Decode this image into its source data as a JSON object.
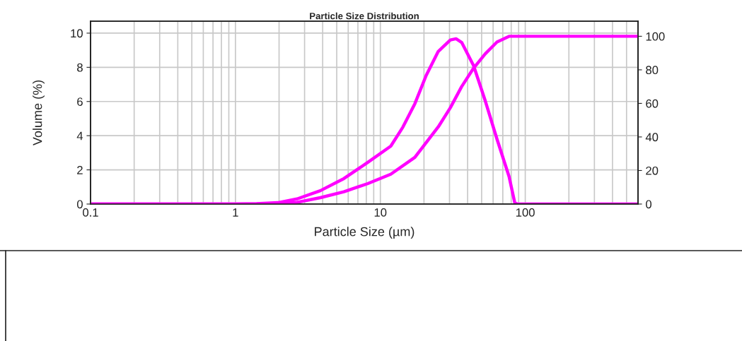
{
  "chart_data": {
    "type": "line",
    "title": "Particle Size Distribution",
    "xlabel": "Particle Size (µm)",
    "ylabel": "Volume (%)",
    "log": "x",
    "grid": true,
    "xlim": [
      0.1,
      600
    ],
    "xticks": [
      0.1,
      1,
      10,
      100
    ],
    "ylim": [
      0,
      10.7
    ],
    "yticks": [
      0,
      2,
      4,
      6,
      8,
      10
    ],
    "y2lim": [
      0,
      109
    ],
    "y2ticks": [
      0,
      20,
      40,
      60,
      80,
      100
    ],
    "series": [
      {
        "color": "#ff00ff",
        "x": [
          0.1,
          1,
          1.4,
          1.96,
          2.66,
          3.85,
          5.6,
          8.2,
          11.8,
          14.3,
          17.3,
          20.7,
          25.1,
          30.4,
          33.3,
          36.4,
          44,
          53,
          63.8,
          77.3,
          84.6,
          88,
          600
        ],
        "values": [
          0,
          0,
          0.02,
          0.08,
          0.3,
          0.78,
          1.49,
          2.44,
          3.39,
          4.5,
          5.87,
          7.52,
          8.93,
          9.6,
          9.67,
          9.46,
          8.1,
          6.03,
          3.8,
          1.61,
          0.08,
          0,
          0
        ]
      },
      {
        "color": "#ff00ff",
        "axis": "y2",
        "x": [
          0.1,
          1.5,
          2.66,
          3.85,
          5.6,
          8.2,
          11.8,
          17.3,
          25.1,
          30.4,
          36.4,
          44,
          53,
          63.8,
          77.3,
          600
        ],
        "values": [
          0,
          0,
          1,
          3.8,
          7.3,
          12.2,
          17.8,
          27.8,
          46,
          57.4,
          70,
          81,
          89.6,
          96.6,
          100,
          100
        ]
      }
    ]
  }
}
